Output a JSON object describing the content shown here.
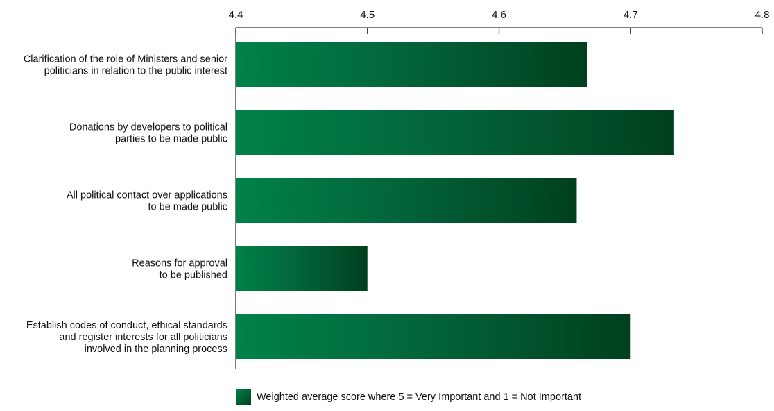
{
  "colors": {
    "bar_gradient": [
      "#00824a",
      "#02663a",
      "#00401f"
    ],
    "axis": "#333333",
    "text": "#111111"
  },
  "chart_data": {
    "type": "bar",
    "orientation": "horizontal",
    "xaxis_position": "top",
    "xlim": [
      4.4,
      4.8
    ],
    "xticks": [
      "4.4",
      "4.5",
      "4.6",
      "4.7",
      "4.8"
    ],
    "grid": false,
    "legend_position": "bottom",
    "title": "",
    "xlabel": "",
    "ylabel": "",
    "categories": [
      [
        "Clarification of the role of Ministers and senior",
        "politicians in relation to the public interest"
      ],
      [
        "Donations by developers to political",
        "parties to be made public"
      ],
      [
        "All political contact over applications",
        "to be made public"
      ],
      [
        "Reasons for approval",
        "to be published"
      ],
      [
        "Establish codes of conduct, ethical standards",
        "and register interests for all politicians",
        "involved in the planning process"
      ]
    ],
    "series": [
      {
        "name": "Weighted average score where 5 = Very Important and 1 = Not Important",
        "values": [
          4.667,
          4.733,
          4.659,
          4.5,
          4.7
        ]
      }
    ]
  }
}
